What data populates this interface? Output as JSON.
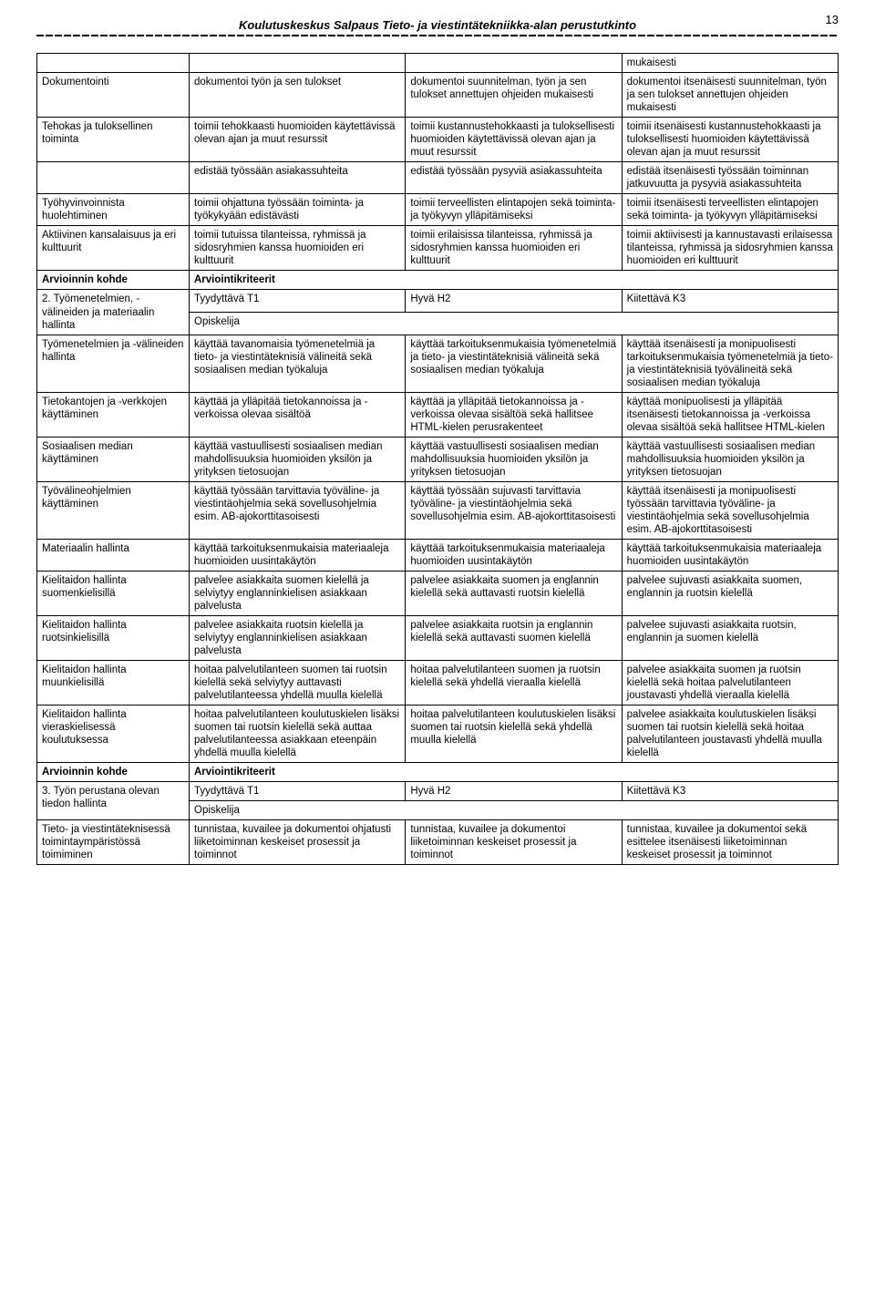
{
  "page": {
    "header_title": "Koulutuskeskus Salpaus Tieto- ja viestintätekniikka-alan perustutkinto",
    "page_number": "13"
  },
  "table": {
    "border_color": "#000000",
    "col_widths_pct": [
      19,
      27,
      27,
      27
    ],
    "rows": [
      {
        "c1": "",
        "c2": "",
        "c3": "",
        "c4": "mukaisesti"
      },
      {
        "c1": "Dokumentointi",
        "c2": "dokumentoi työn ja sen tulokset",
        "c3": "dokumentoi suunnitelman, työn ja sen tulokset annettujen ohjeiden mukaisesti",
        "c4": "dokumentoi itsenäisesti suunnitelman, työn ja sen tulokset annettujen ohjeiden mukaisesti"
      },
      {
        "c1": "Tehokas ja tuloksellinen toiminta",
        "c2": "toimii tehokkaasti huomioiden käytettävissä olevan ajan ja muut resurssit",
        "c3": "toimii kustannustehokkaasti ja tuloksellisesti huomioiden käytettävissä olevan ajan ja muut resurssit",
        "c4": "toimii itsenäisesti kustannustehokkaasti ja tuloksellisesti huomioiden käytettävissä olevan ajan ja muut resurssit"
      },
      {
        "c1": "",
        "c2": "edistää työssään asiakassuhteita",
        "c3": "edistää työssään pysyviä asiakassuhteita",
        "c4": "edistää itsenäisesti työssään toiminnan jatkuvuutta ja pysyviä asiakassuhteita"
      },
      {
        "c1": "Työhyvinvoinnista huolehtiminen",
        "c2": "toimii ohjattuna työssään toiminta- ja työkykyään edistävästi",
        "c3": "toimii terveellisten elintapojen sekä toiminta- ja työkyvyn ylläpitämiseksi",
        "c4": "toimii itsenäisesti terveellisten elintapojen sekä toiminta- ja työkyvyn ylläpitämiseksi"
      },
      {
        "c1": "Aktiivinen kansalaisuus ja eri kulttuurit",
        "c2": "toimii tutuissa tilanteissa, ryhmissä ja sidosryhmien kanssa huomioiden eri kulttuurit",
        "c3": "toimii erilaisissa tilanteissa, ryhmissä ja sidosryhmien kanssa huomioiden eri kulttuurit",
        "c4": "toimii aktiivisesti ja kannustavasti erilaisessa tilanteissa, ryhmissä ja sidosryhmien kanssa huomioiden eri kulttuurit"
      },
      {
        "bold": true,
        "c1": "Arvioinnin kohde",
        "c2": "Arviointikriteerit",
        "c2_span": 3
      },
      {
        "c1": "2. Työmenetelmien, -välineiden ja materiaalin hallinta",
        "c2": "Tyydyttävä T1",
        "c3": "Hyvä H2",
        "c4": "Kiitettävä K3",
        "c2b": "Opiskelija"
      },
      {
        "c1": "Työmenetelmien ja -välineiden hallinta",
        "c2": "käyttää tavanomaisia työmenetelmiä ja tieto- ja viestintäteknisiä välineitä sekä sosiaalisen median työkaluja",
        "c3": "käyttää tarkoituksenmukaisia työmenetelmiä ja tieto- ja viestintäteknisiä välineitä sekä sosiaalisen median työkaluja",
        "c4": "käyttää itsenäisesti ja monipuolisesti tarkoituksenmukaisia työmenetelmiä ja tieto- ja viestintäteknisiä työvälineitä sekä sosiaalisen median työkaluja"
      },
      {
        "c1": "Tietokantojen ja -verkkojen käyttäminen",
        "c2": "käyttää ja ylläpitää tietokannoissa ja -verkoissa olevaa sisältöä",
        "c3": "käyttää ja ylläpitää tietokannoissa ja -verkoissa olevaa sisältöä sekä hallitsee HTML-kielen perusrakenteet",
        "c4": "käyttää monipuolisesti ja ylläpitää itsenäisesti tietokannoissa ja -verkoissa olevaa sisältöä sekä hallitsee HTML-kielen"
      },
      {
        "c1": "Sosiaalisen median käyttäminen",
        "c2": "käyttää vastuullisesti sosiaalisen median mahdollisuuksia huomioiden yksilön ja yrityksen tietosuojan",
        "c3": "käyttää vastuullisesti sosiaalisen median mahdollisuuksia huomioiden yksilön ja yrityksen tietosuojan",
        "c4": "käyttää vastuullisesti sosiaalisen median mahdollisuuksia huomioiden yksilön ja yrityksen tietosuojan"
      },
      {
        "c1": "Työvälineohjelmien käyttäminen",
        "c2": "käyttää työssään tarvittavia työväline- ja viestintäohjelmia sekä sovellusohjelmia esim. AB-ajokorttitasoisesti",
        "c3": "käyttää työssään sujuvasti tarvittavia työväline- ja viestintäohjelmia sekä sovellusohjelmia esim. AB-ajokorttitasoisesti",
        "c4": "käyttää itsenäisesti ja monipuolisesti työssään tarvittavia työväline- ja viestintäohjelmia sekä sovellusohjelmia esim. AB-ajokorttitasoisesti"
      },
      {
        "c1": "Materiaalin hallinta",
        "c2": "käyttää tarkoituksenmukaisia materiaaleja huomioiden uusintakäytön",
        "c3": "käyttää tarkoituksenmukaisia materiaaleja huomioiden uusintakäytön",
        "c4": "käyttää tarkoituksenmukaisia materiaaleja huomioiden uusintakäytön"
      },
      {
        "c1": "Kielitaidon hallinta suomenkielisillä",
        "c2": "palvelee asiakkaita suomen kielellä ja selviytyy englanninkielisen asiakkaan palvelusta",
        "c3": "palvelee asiakkaita suomen ja englannin kielellä sekä auttavasti ruotsin kielellä",
        "c4": "palvelee sujuvasti asiakkaita suomen, englannin ja ruotsin kielellä"
      },
      {
        "c1": "Kielitaidon hallinta ruotsinkielisillä",
        "c2": "palvelee asiakkaita ruotsin kielellä ja selviytyy englanninkielisen asiakkaan palvelusta",
        "c3": "palvelee asiakkaita ruotsin ja englannin kielellä sekä auttavasti suomen kielellä",
        "c4": "palvelee sujuvasti asiakkaita ruotsin, englannin ja suomen kielellä"
      },
      {
        "c1": "Kielitaidon hallinta muunkielisillä",
        "c2": "hoitaa palvelutilanteen suomen tai ruotsin kielellä sekä selviytyy auttavasti palvelutilanteessa yhdellä muulla kielellä",
        "c3": "hoitaa palvelutilanteen suomen ja ruotsin kielellä sekä yhdellä vieraalla kielellä",
        "c4": "palvelee asiakkaita suomen ja ruotsin kielellä sekä hoitaa palvelutilanteen joustavasti yhdellä vieraalla kielellä"
      },
      {
        "c1": "Kielitaidon hallinta vieraskielisessä koulutuksessa",
        "c2": "hoitaa palvelutilanteen koulutuskielen lisäksi suomen tai ruotsin kielellä sekä auttaa palvelutilanteessa asiakkaan eteenpäin yhdellä muulla kielellä",
        "c3": "hoitaa palvelutilanteen koulutuskielen lisäksi suomen tai ruotsin kielellä sekä yhdellä muulla kielellä",
        "c4": "palvelee asiakkaita koulutuskielen lisäksi suomen tai ruotsin kielellä sekä hoitaa palvelutilanteen joustavasti yhdellä muulla kielellä"
      },
      {
        "bold": true,
        "c1": "Arvioinnin kohde",
        "c2": "Arviointikriteerit",
        "c2_span": 3
      },
      {
        "c1": "3. Työn perustana olevan tiedon hallinta",
        "c2": "Tyydyttävä T1",
        "c3": "Hyvä H2",
        "c4": "Kiitettävä K3",
        "c2b": "Opiskelija"
      },
      {
        "c1": "Tieto- ja viestintäteknisessä toimintaympäristössä toimiminen",
        "c2": "tunnistaa, kuvailee ja dokumentoi ohjatusti liiketoiminnan keskeiset prosessit ja toiminnot",
        "c3": "tunnistaa, kuvailee ja dokumentoi liiketoiminnan keskeiset prosessit ja toiminnot",
        "c4": "tunnistaa, kuvailee ja dokumentoi sekä esittelee itsenäisesti liiketoiminnan keskeiset prosessit ja toiminnot"
      }
    ]
  }
}
